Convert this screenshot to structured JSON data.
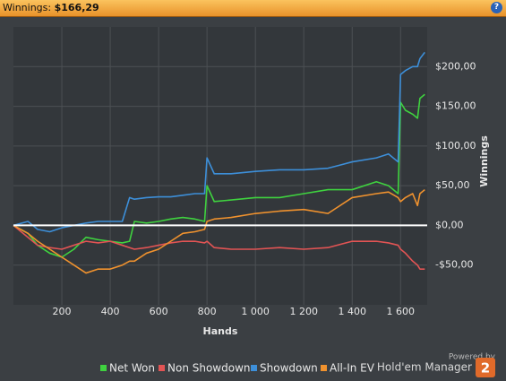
{
  "header": {
    "title": "Winnings:",
    "value": "$166,29"
  },
  "chart_data": {
    "type": "line",
    "x": [
      0,
      60,
      100,
      150,
      200,
      250,
      300,
      350,
      400,
      450,
      480,
      500,
      550,
      600,
      650,
      700,
      750,
      790,
      800,
      830,
      900,
      1000,
      1100,
      1200,
      1300,
      1400,
      1500,
      1550,
      1590,
      1600,
      1620,
      1650,
      1670,
      1680,
      1700
    ],
    "series": [
      {
        "name": "Net Won",
        "color": "#3fd23f",
        "values": [
          0,
          -10,
          -25,
          -35,
          -40,
          -30,
          -15,
          -18,
          -20,
          -22,
          -20,
          5,
          3,
          5,
          8,
          10,
          8,
          5,
          50,
          30,
          32,
          35,
          35,
          40,
          45,
          45,
          55,
          50,
          40,
          155,
          145,
          140,
          135,
          160,
          165
        ]
      },
      {
        "name": "Non Showdown",
        "color": "#e25454",
        "values": [
          0,
          -15,
          -25,
          -28,
          -30,
          -25,
          -20,
          -22,
          -20,
          -25,
          -28,
          -30,
          -28,
          -25,
          -22,
          -20,
          -20,
          -22,
          -20,
          -28,
          -30,
          -30,
          -28,
          -30,
          -28,
          -20,
          -20,
          -22,
          -25,
          -30,
          -35,
          -45,
          -50,
          -55,
          -55
        ]
      },
      {
        "name": "Showdown",
        "color": "#3d8fd9",
        "values": [
          0,
          5,
          -5,
          -8,
          -3,
          0,
          3,
          5,
          5,
          5,
          35,
          33,
          35,
          36,
          36,
          38,
          40,
          40,
          85,
          65,
          65,
          68,
          70,
          70,
          72,
          80,
          85,
          90,
          80,
          190,
          195,
          200,
          200,
          210,
          218
        ]
      },
      {
        "name": "All-In EV",
        "color": "#f0922e",
        "values": [
          0,
          -10,
          -20,
          -30,
          -40,
          -50,
          -60,
          -55,
          -55,
          -50,
          -45,
          -45,
          -35,
          -30,
          -20,
          -10,
          -8,
          -5,
          5,
          8,
          10,
          15,
          18,
          20,
          15,
          35,
          40,
          42,
          35,
          30,
          35,
          40,
          25,
          40,
          45
        ]
      }
    ],
    "xlim": [
      0,
      1710
    ],
    "xticks": [
      200,
      400,
      600,
      800,
      {
        "value": 1000,
        "label": "1 000"
      },
      {
        "value": 1200,
        "label": "1 200"
      },
      {
        "value": 1400,
        "label": "1 400"
      },
      {
        "value": 1600,
        "label": "1 600"
      }
    ],
    "ylim": [
      -100,
      250
    ],
    "yticks": [
      {
        "value": -50,
        "label": "-$50,00"
      },
      {
        "value": 0,
        "label": "$0,00"
      },
      {
        "value": 50,
        "label": "$50,00"
      },
      {
        "value": 100,
        "label": "$100,00"
      },
      {
        "value": 150,
        "label": "$150,00"
      },
      {
        "value": 200,
        "label": "$200,00"
      }
    ],
    "xlabel": "Hands",
    "ylabel": "Winnings",
    "grid": true,
    "legend": "bottom"
  },
  "footer": {
    "powered": "Powered by",
    "brand": "Hold'em Manager",
    "badge": "2"
  }
}
